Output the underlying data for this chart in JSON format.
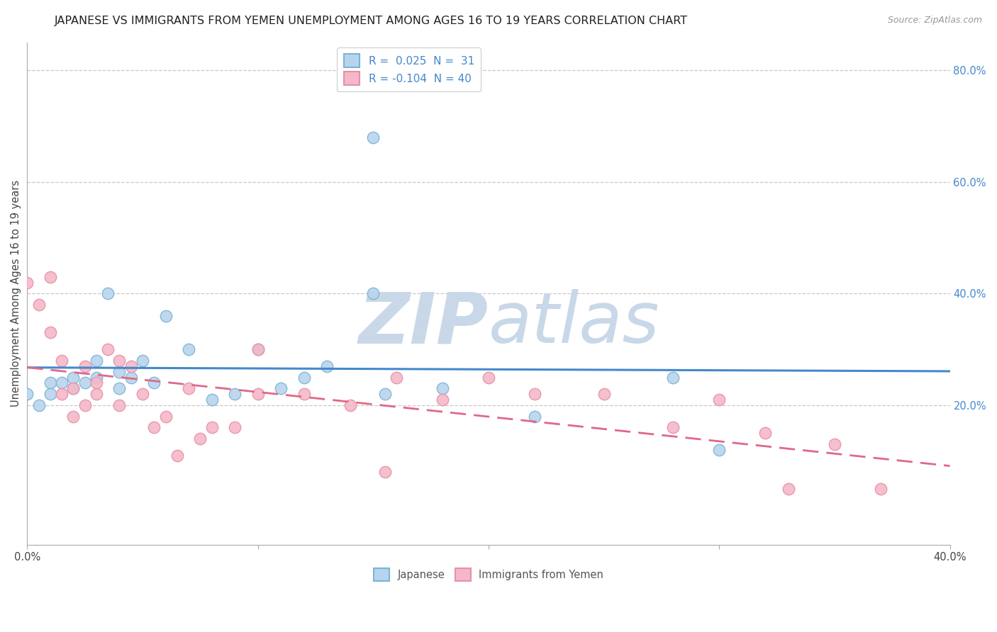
{
  "title": "JAPANESE VS IMMIGRANTS FROM YEMEN UNEMPLOYMENT AMONG AGES 16 TO 19 YEARS CORRELATION CHART",
  "source": "Source: ZipAtlas.com",
  "ylabel": "Unemployment Among Ages 16 to 19 years",
  "xlim": [
    0.0,
    0.4
  ],
  "ylim": [
    -0.05,
    0.85
  ],
  "legend_japanese_r": "0.025",
  "legend_japanese_n": "31",
  "legend_yemen_r": "-0.104",
  "legend_yemen_n": "40",
  "watermark_zip": "ZIP",
  "watermark_atlas": "atlas",
  "watermark_color": "#c8d8e8",
  "japanese_color": "#7ab4d8",
  "japanese_fill": "#b8d4ec",
  "yemen_color": "#e890a8",
  "yemen_fill": "#f4b8c8",
  "trend_jp_color": "#4488cc",
  "trend_ye_color": "#e06888",
  "grid_color": "#c8c8c8",
  "bg_color": "#ffffff",
  "japanese_scatter_x": [
    0.0,
    0.005,
    0.01,
    0.01,
    0.015,
    0.02,
    0.02,
    0.025,
    0.03,
    0.03,
    0.035,
    0.04,
    0.04,
    0.045,
    0.05,
    0.055,
    0.06,
    0.07,
    0.08,
    0.09,
    0.1,
    0.11,
    0.12,
    0.13,
    0.15,
    0.155,
    0.18,
    0.22,
    0.28,
    0.3,
    0.15
  ],
  "japanese_scatter_y": [
    0.22,
    0.2,
    0.24,
    0.22,
    0.24,
    0.23,
    0.25,
    0.24,
    0.28,
    0.25,
    0.4,
    0.26,
    0.23,
    0.25,
    0.28,
    0.24,
    0.36,
    0.3,
    0.21,
    0.22,
    0.3,
    0.23,
    0.25,
    0.27,
    0.4,
    0.22,
    0.23,
    0.18,
    0.25,
    0.12,
    0.68
  ],
  "yemen_scatter_x": [
    0.0,
    0.005,
    0.01,
    0.01,
    0.015,
    0.015,
    0.02,
    0.02,
    0.025,
    0.025,
    0.03,
    0.03,
    0.035,
    0.04,
    0.04,
    0.045,
    0.05,
    0.055,
    0.06,
    0.065,
    0.07,
    0.075,
    0.08,
    0.09,
    0.1,
    0.1,
    0.12,
    0.14,
    0.155,
    0.16,
    0.18,
    0.2,
    0.22,
    0.25,
    0.28,
    0.3,
    0.32,
    0.33,
    0.35,
    0.37
  ],
  "yemen_scatter_y": [
    0.42,
    0.38,
    0.43,
    0.33,
    0.22,
    0.28,
    0.23,
    0.18,
    0.2,
    0.27,
    0.22,
    0.24,
    0.3,
    0.2,
    0.28,
    0.27,
    0.22,
    0.16,
    0.18,
    0.11,
    0.23,
    0.14,
    0.16,
    0.16,
    0.3,
    0.22,
    0.22,
    0.2,
    0.08,
    0.25,
    0.21,
    0.25,
    0.22,
    0.22,
    0.16,
    0.21,
    0.15,
    0.05,
    0.13,
    0.05
  ],
  "title_fontsize": 11.5,
  "axis_fontsize": 10.5,
  "legend_fontsize": 11,
  "right_label_color": "#4488cc"
}
